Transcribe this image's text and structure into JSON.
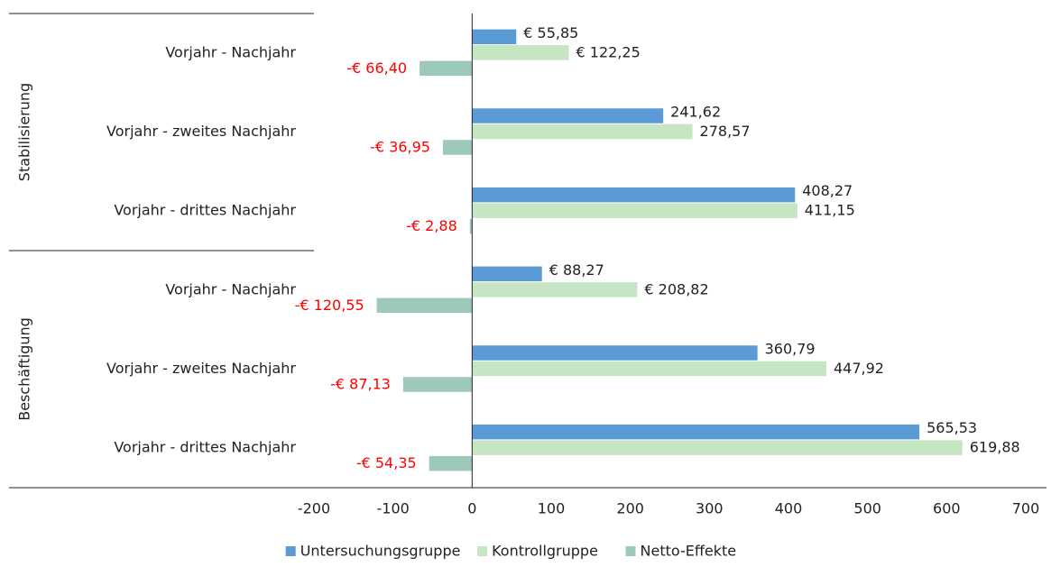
{
  "chart_data": {
    "type": "bar",
    "orientation": "horizontal",
    "groups": [
      "Stabilisierung",
      "Beschäftigung"
    ],
    "categories": [
      "Vorjahr - Nachjahr",
      "Vorjahr - zweites Nachjahr",
      "Vorjahr - drittes Nachjahr",
      "Vorjahr - Nachjahr",
      "Vorjahr - zweites Nachjahr",
      "Vorjahr - drittes Nachjahr"
    ],
    "series": [
      {
        "name": "Untersuchungsgruppe",
        "color": "#5b9bd5",
        "values": [
          55.85,
          241.62,
          408.27,
          88.27,
          360.79,
          565.53
        ],
        "value_labels": [
          "€ 55,85",
          "241,62",
          "408,27",
          "€ 88,27",
          "360,79",
          "565,53"
        ]
      },
      {
        "name": "Kontrollgruppe",
        "color": "#c5e5c3",
        "values": [
          122.25,
          278.57,
          411.15,
          208.82,
          447.92,
          619.88
        ],
        "value_labels": [
          "€ 122,25",
          "278,57",
          "411,15",
          "€ 208,82",
          "447,92",
          "619,88"
        ]
      },
      {
        "name": "Netto-Effekte",
        "color": "#9dc9ba",
        "label_color": "#ff0000",
        "values": [
          -66.4,
          -36.95,
          -2.88,
          -120.55,
          -87.13,
          -54.35
        ],
        "value_labels": [
          "-€ 66,40",
          "-€ 36,95",
          "-€ 2,88",
          "-€ 120,55",
          "-€ 87,13",
          "-€ 54,35"
        ]
      }
    ],
    "xlim": [
      -200,
      700
    ],
    "xticks": [
      -200,
      -100,
      0,
      100,
      200,
      300,
      400,
      500,
      600,
      700
    ],
    "grid": false,
    "legend": "bottom"
  }
}
